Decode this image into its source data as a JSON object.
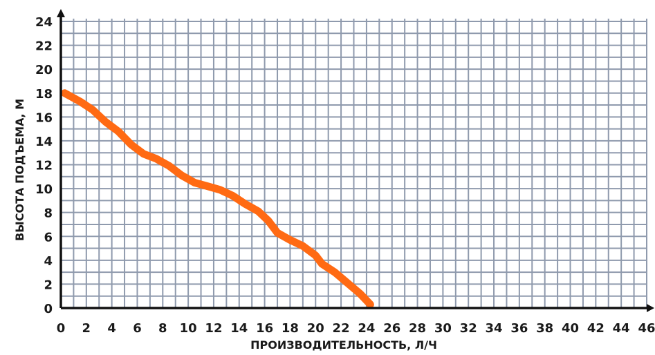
{
  "chart_data": {
    "type": "line",
    "title": "",
    "xlabel": "ПРОИЗВОДИТЕЛЬНОСТЬ, Л/Ч",
    "ylabel": "ВЫСОТА ПОДЪЕМА, М",
    "xlim": [
      0,
      46
    ],
    "ylim": [
      0,
      24
    ],
    "x_ticks": [
      "0",
      "2",
      "4",
      "6",
      "8",
      "10",
      "12",
      "14",
      "16",
      "18",
      "20",
      "22",
      "24",
      "26",
      "28",
      "30",
      "32",
      "34",
      "36",
      "38",
      "40",
      "42",
      "44",
      "46"
    ],
    "y_ticks": [
      "0",
      "2",
      "4",
      "6",
      "8",
      "10",
      "12",
      "14",
      "16",
      "18",
      "20",
      "22",
      "24"
    ],
    "grid": true,
    "series": [
      {
        "color": "#ff6a13",
        "points": [
          [
            0.3,
            18.0
          ],
          [
            1.5,
            17.3
          ],
          [
            2.5,
            16.6
          ],
          [
            3.5,
            15.6
          ],
          [
            4.5,
            14.8
          ],
          [
            5.5,
            13.7
          ],
          [
            6.5,
            12.9
          ],
          [
            7.5,
            12.5
          ],
          [
            8.5,
            11.9
          ],
          [
            9.5,
            11.1
          ],
          [
            10.5,
            10.5
          ],
          [
            11.5,
            10.2
          ],
          [
            12.5,
            9.9
          ],
          [
            13.5,
            9.4
          ],
          [
            14.5,
            8.7
          ],
          [
            15.5,
            8.1
          ],
          [
            16.3,
            7.3
          ],
          [
            17.0,
            6.3
          ],
          [
            18.0,
            5.7
          ],
          [
            19.0,
            5.2
          ],
          [
            20.0,
            4.4
          ],
          [
            20.5,
            3.7
          ],
          [
            21.5,
            3.0
          ],
          [
            22.5,
            2.1
          ],
          [
            23.5,
            1.2
          ],
          [
            24.3,
            0.3
          ]
        ]
      }
    ]
  }
}
